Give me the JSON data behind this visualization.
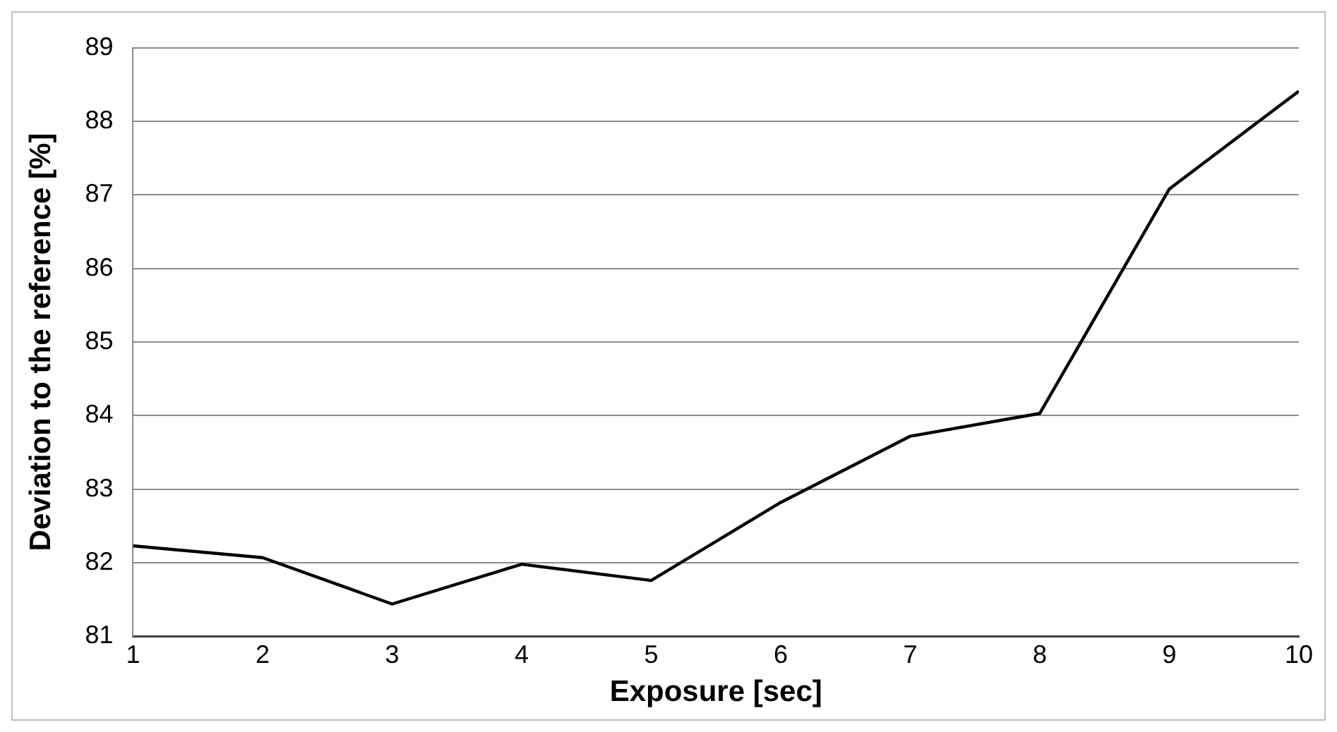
{
  "chart_data": {
    "type": "line",
    "xlabel": "Exposure [sec]",
    "ylabel": "Deviation to the reference [%]",
    "x": [
      1,
      2,
      3,
      4,
      5,
      6,
      7,
      8,
      9,
      10
    ],
    "series": [
      {
        "color": "#000000",
        "values": [
          82.23,
          82.07,
          81.44,
          81.98,
          81.76,
          82.82,
          83.72,
          84.03,
          87.08,
          88.41
        ]
      }
    ],
    "xlim": [
      1,
      10
    ],
    "xticks": [
      1,
      2,
      3,
      4,
      5,
      6,
      7,
      8,
      9,
      10
    ],
    "ylim": [
      81,
      89
    ],
    "yticks": [
      81,
      82,
      83,
      84,
      85,
      86,
      87,
      88,
      89
    ],
    "grid": "y",
    "legend": false,
    "marker": "none",
    "line_style": "solid"
  }
}
